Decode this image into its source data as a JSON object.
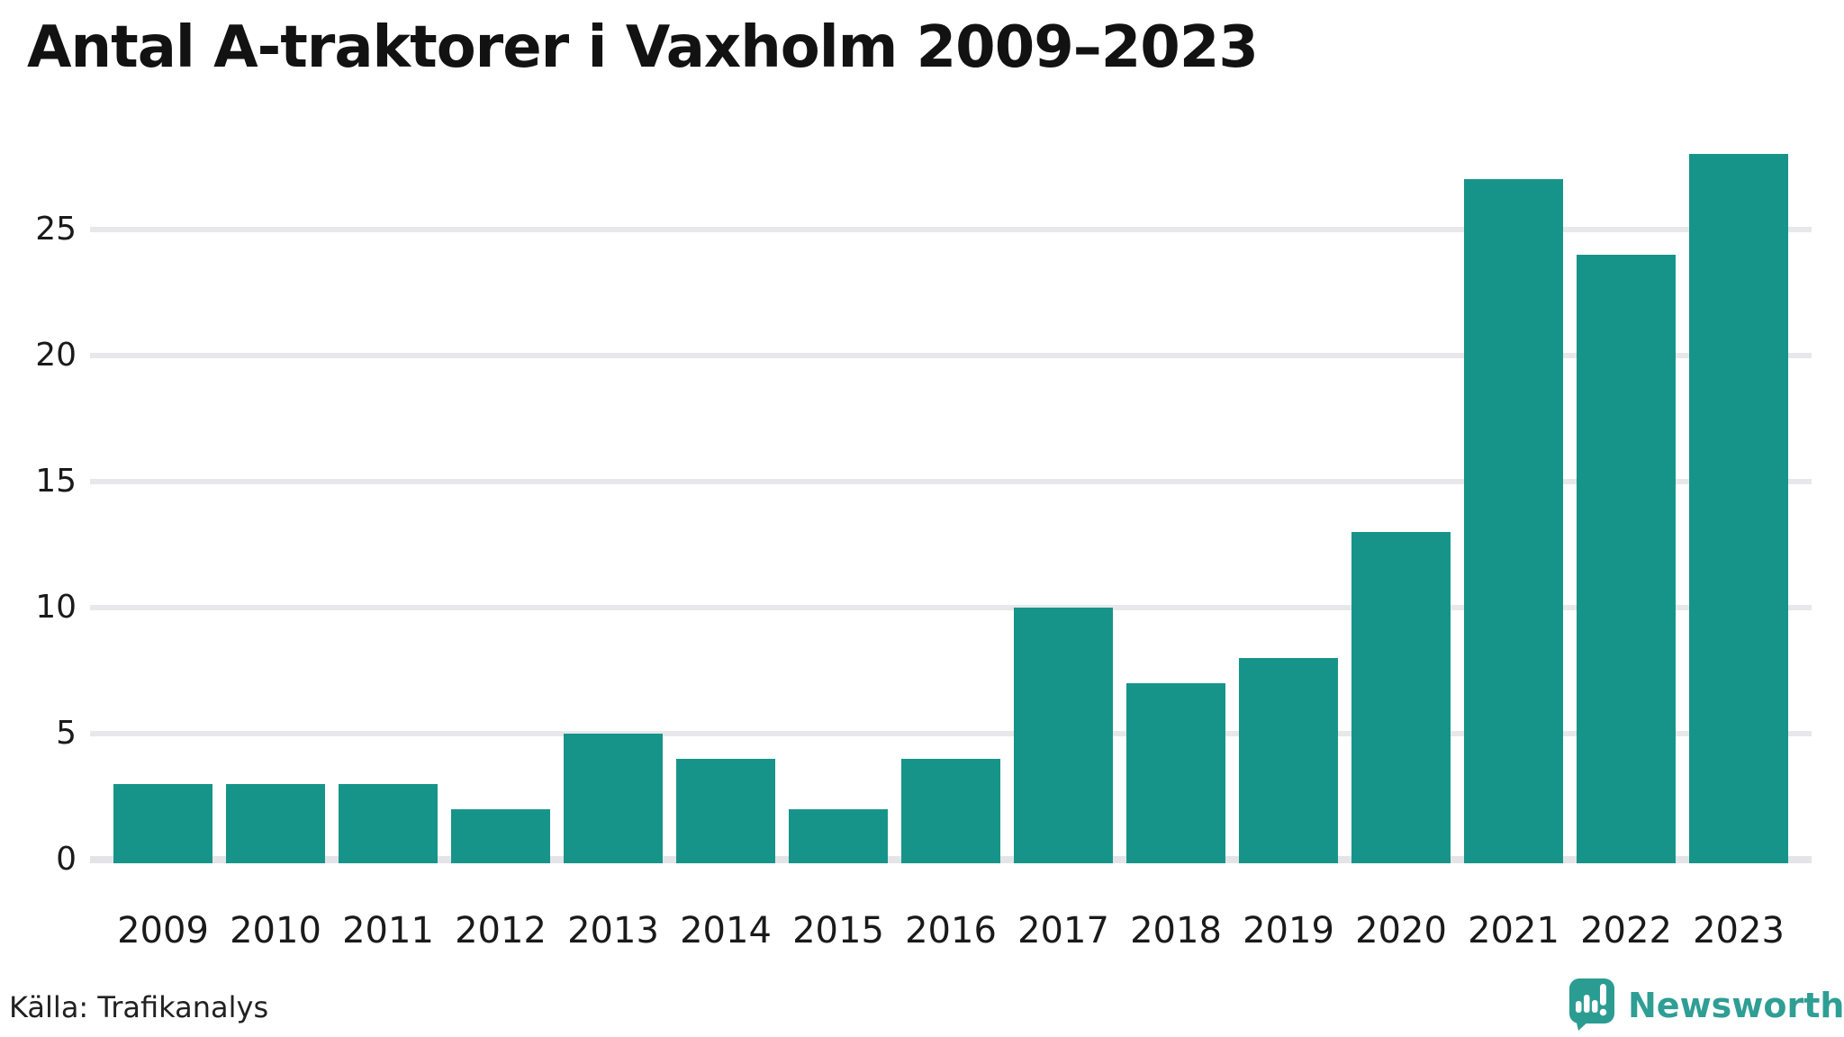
{
  "title": "Antal A-traktorer i Vaxholm 2009–2023",
  "source": {
    "label": "Källa: Trafikanalys"
  },
  "branding": {
    "name": "Newsworthy",
    "icon": "newsworthy-speech-bubble-barchart-icon"
  },
  "colors": {
    "bar": "#17948a",
    "gridline": "#e8e8eb",
    "baseline": "#e4e4e8",
    "title_text": "#121212",
    "tick_text": "#1a1a1a",
    "brand_teal": "#2f9e94",
    "logo_teal": "#2b9c92",
    "background": "#ffffff"
  },
  "chart_data": {
    "type": "bar",
    "title": "Antal A-traktorer i Vaxholm 2009–2023",
    "categories": [
      "2009",
      "2010",
      "2011",
      "2012",
      "2013",
      "2014",
      "2015",
      "2016",
      "2017",
      "2018",
      "2019",
      "2020",
      "2021",
      "2022",
      "2023"
    ],
    "values": [
      3,
      3,
      3,
      2,
      5,
      4,
      2,
      4,
      10,
      7,
      8,
      13,
      27,
      24,
      28
    ],
    "xlabel": "",
    "ylabel": "",
    "ylim": [
      0,
      28
    ],
    "yticks": [
      0,
      5,
      10,
      15,
      20,
      25
    ],
    "grid": "horizontal",
    "legend": "none",
    "bar_color": "#17948a"
  }
}
